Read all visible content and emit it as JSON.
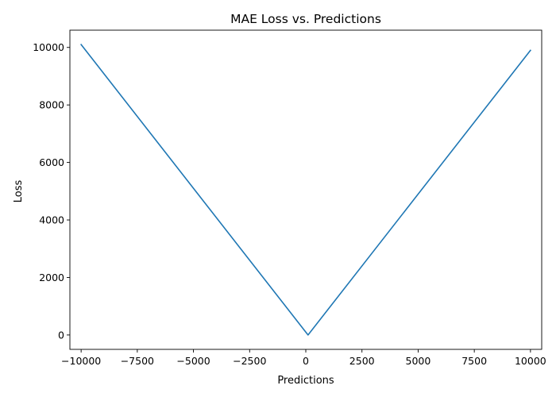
{
  "chart_data": {
    "type": "line",
    "title": "MAE Loss vs. Predictions",
    "xlabel": "Predictions",
    "ylabel": "Loss",
    "xlim": [
      -10500,
      10500
    ],
    "ylim": [
      -500,
      10600
    ],
    "xticks": [
      -10000,
      -7500,
      -5000,
      -2500,
      0,
      2500,
      5000,
      7500,
      10000
    ],
    "xtick_labels": [
      "−10000",
      "−7500",
      "−5000",
      "−2500",
      "0",
      "2500",
      "5000",
      "7500",
      "10000"
    ],
    "yticks": [
      0,
      2000,
      4000,
      6000,
      8000,
      10000
    ],
    "ytick_labels": [
      "0",
      "2000",
      "4000",
      "6000",
      "8000",
      "10000"
    ],
    "grid": false,
    "series": [
      {
        "color": "#1f77b4",
        "x": [
          -10000,
          100,
          10000
        ],
        "y": [
          10100,
          0,
          9900
        ]
      }
    ]
  }
}
